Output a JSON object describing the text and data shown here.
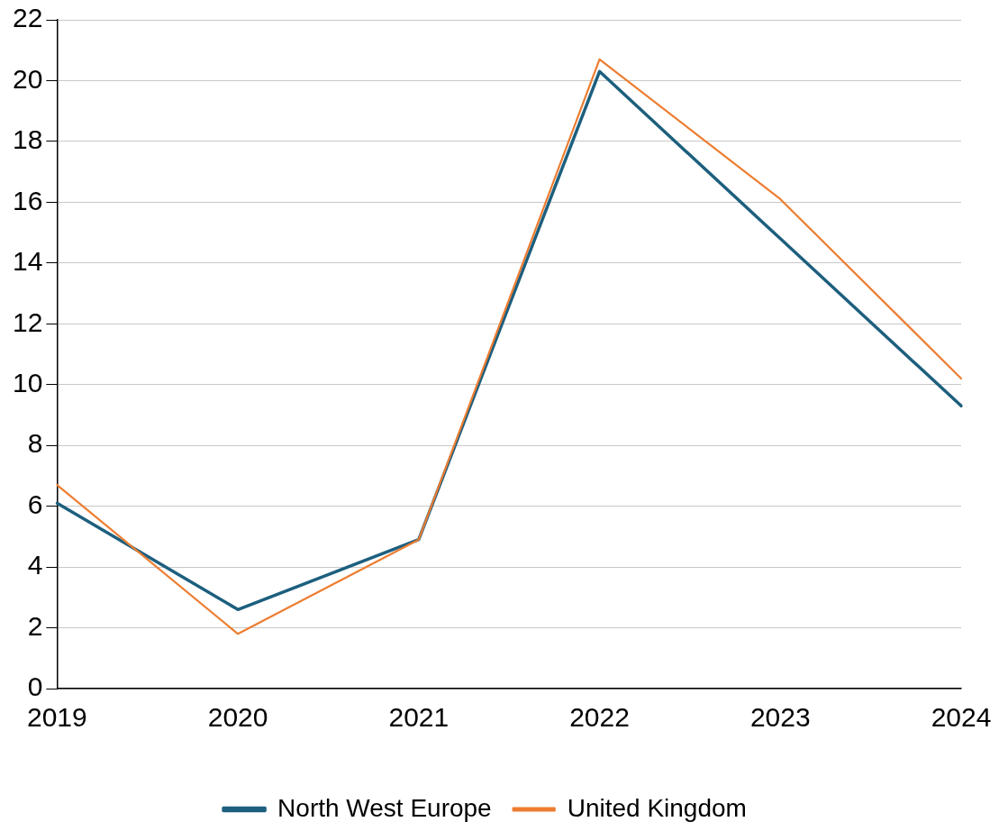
{
  "chart_data": {
    "type": "line",
    "categories": [
      "2019",
      "2020",
      "2021",
      "2022",
      "2023",
      "2024"
    ],
    "series": [
      {
        "name": "North West Europe",
        "color": "#1d5f7e",
        "values": [
          6.1,
          2.6,
          4.9,
          20.3,
          14.8,
          9.3
        ]
      },
      {
        "name": "United Kingdom",
        "color": "#ed7d31",
        "values": [
          6.7,
          1.8,
          4.9,
          20.7,
          16.1,
          10.2
        ]
      }
    ],
    "ylim": [
      0,
      22
    ],
    "yticks": [
      0,
      2,
      4,
      6,
      8,
      10,
      12,
      14,
      16,
      18,
      20,
      22
    ],
    "grid": "y",
    "legend": "bottom",
    "marker": "none",
    "line_style": "solid"
  }
}
